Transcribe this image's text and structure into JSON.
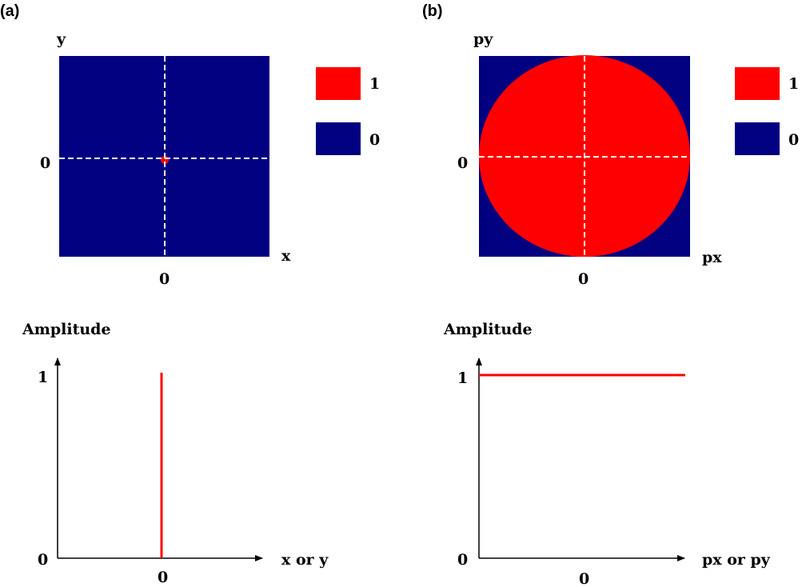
{
  "panels": [
    {
      "label": "(a)",
      "map": {
        "y_axis_label": "y",
        "x_axis_label": "x",
        "y_zero": "0",
        "x_zero": "0",
        "shape": "point"
      },
      "plot": {
        "y_title": "Amplitude",
        "x_title": "x or y",
        "y_one": "1",
        "y_zero": "0",
        "x_zero": "0"
      }
    },
    {
      "label": "(b)",
      "map": {
        "y_axis_label": "py",
        "x_axis_label": "px",
        "y_zero": "0",
        "x_zero": "0",
        "shape": "disc"
      },
      "plot": {
        "y_title": "Amplitude",
        "x_title": "px or py",
        "y_one": "1",
        "y_zero": "0",
        "x_zero": "0"
      }
    }
  ],
  "legend": [
    {
      "value": "1",
      "color": "#ff0000"
    },
    {
      "value": "0",
      "color": "#000080"
    }
  ],
  "colors": {
    "background_fill": "#000080",
    "signal": "#ff0000",
    "guides": "#ffffff"
  }
}
